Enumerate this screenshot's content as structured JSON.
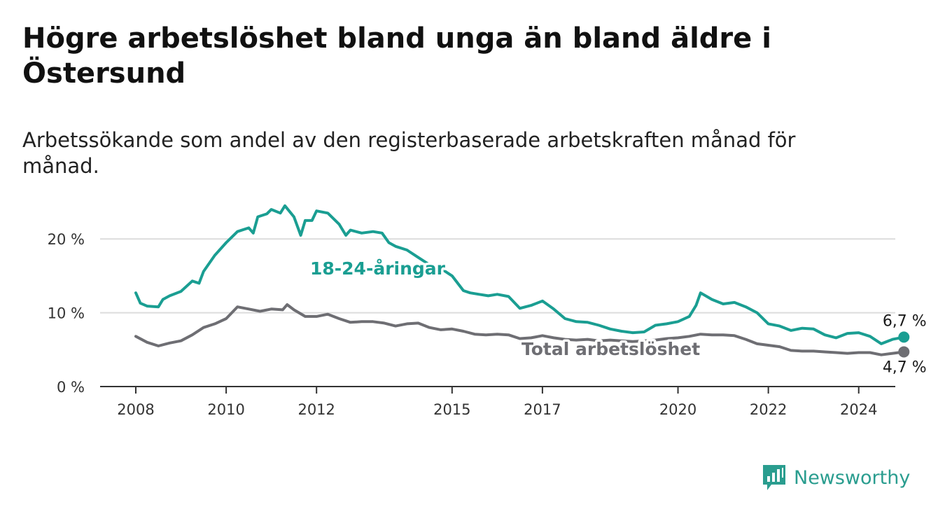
{
  "title": "Högre arbetslöshet bland unga än bland äldre i Östersund",
  "subtitle": "Arbetssökande som andel av den registerbaserade arbetskraften månad för månad.",
  "brand": {
    "name": "Newsworthy",
    "color": "#2a9d8f",
    "icon": "bar-chart-icon"
  },
  "chart_data": {
    "type": "line",
    "ylim": [
      0,
      26
    ],
    "xlim": [
      2008,
      2025.6
    ],
    "y_ticks": [
      {
        "value": 0,
        "label": "0 %"
      },
      {
        "value": 10,
        "label": "10 %"
      },
      {
        "value": 20,
        "label": "20 %"
      }
    ],
    "x_ticks": [
      {
        "value": 2008,
        "label": "2008"
      },
      {
        "value": 2010,
        "label": "2010"
      },
      {
        "value": 2012,
        "label": "2012"
      },
      {
        "value": 2015,
        "label": "2015"
      },
      {
        "value": 2017,
        "label": "2017"
      },
      {
        "value": 2020,
        "label": "2020"
      },
      {
        "value": 2022,
        "label": "2022"
      },
      {
        "value": 2024,
        "label": "2024"
      }
    ],
    "grid": true,
    "series": [
      {
        "name": "18-24-åringar",
        "color": "#1a9e92",
        "end_label": "6,7 %",
        "points": [
          [
            2008.0,
            12.7
          ],
          [
            2008.1,
            11.3
          ],
          [
            2008.25,
            10.9
          ],
          [
            2008.5,
            10.8
          ],
          [
            2008.6,
            11.8
          ],
          [
            2008.75,
            12.3
          ],
          [
            2009.0,
            12.9
          ],
          [
            2009.25,
            14.3
          ],
          [
            2009.4,
            14.0
          ],
          [
            2009.5,
            15.6
          ],
          [
            2009.75,
            17.8
          ],
          [
            2010.0,
            19.5
          ],
          [
            2010.25,
            21.0
          ],
          [
            2010.5,
            21.5
          ],
          [
            2010.6,
            20.8
          ],
          [
            2010.7,
            23.0
          ],
          [
            2010.9,
            23.4
          ],
          [
            2011.0,
            24.0
          ],
          [
            2011.2,
            23.5
          ],
          [
            2011.3,
            24.5
          ],
          [
            2011.5,
            23.0
          ],
          [
            2011.65,
            20.5
          ],
          [
            2011.75,
            22.5
          ],
          [
            2011.9,
            22.5
          ],
          [
            2012.0,
            23.8
          ],
          [
            2012.25,
            23.5
          ],
          [
            2012.5,
            22.0
          ],
          [
            2012.65,
            20.5
          ],
          [
            2012.75,
            21.2
          ],
          [
            2013.0,
            20.8
          ],
          [
            2013.25,
            21.0
          ],
          [
            2013.45,
            20.8
          ],
          [
            2013.6,
            19.5
          ],
          [
            2013.75,
            19.0
          ],
          [
            2014.0,
            18.5
          ],
          [
            2014.25,
            17.5
          ],
          [
            2014.5,
            16.5
          ],
          [
            2014.75,
            16.0
          ],
          [
            2015.0,
            15.0
          ],
          [
            2015.25,
            13.0
          ],
          [
            2015.4,
            12.7
          ],
          [
            2015.6,
            12.5
          ],
          [
            2015.8,
            12.3
          ],
          [
            2016.0,
            12.5
          ],
          [
            2016.25,
            12.2
          ],
          [
            2016.5,
            10.6
          ],
          [
            2016.75,
            11.0
          ],
          [
            2017.0,
            11.6
          ],
          [
            2017.25,
            10.5
          ],
          [
            2017.5,
            9.2
          ],
          [
            2017.75,
            8.8
          ],
          [
            2018.0,
            8.7
          ],
          [
            2018.25,
            8.3
          ],
          [
            2018.5,
            7.8
          ],
          [
            2018.75,
            7.5
          ],
          [
            2019.0,
            7.3
          ],
          [
            2019.25,
            7.4
          ],
          [
            2019.5,
            8.3
          ],
          [
            2019.75,
            8.5
          ],
          [
            2020.0,
            8.8
          ],
          [
            2020.25,
            9.5
          ],
          [
            2020.4,
            11.0
          ],
          [
            2020.5,
            12.7
          ],
          [
            2020.75,
            11.8
          ],
          [
            2021.0,
            11.2
          ],
          [
            2021.25,
            11.4
          ],
          [
            2021.5,
            10.8
          ],
          [
            2021.75,
            10.0
          ],
          [
            2022.0,
            8.5
          ],
          [
            2022.25,
            8.2
          ],
          [
            2022.5,
            7.6
          ],
          [
            2022.75,
            7.9
          ],
          [
            2023.0,
            7.8
          ],
          [
            2023.25,
            7.0
          ],
          [
            2023.5,
            6.6
          ],
          [
            2023.75,
            7.2
          ],
          [
            2024.0,
            7.3
          ],
          [
            2024.25,
            6.8
          ],
          [
            2024.5,
            5.8
          ],
          [
            2024.75,
            6.4
          ],
          [
            2025.0,
            6.7
          ]
        ]
      },
      {
        "name": "Total arbetslöshet",
        "color": "#6e6e73",
        "end_label": "4,7 %",
        "points": [
          [
            2008.0,
            6.8
          ],
          [
            2008.25,
            6.0
          ],
          [
            2008.5,
            5.5
          ],
          [
            2008.75,
            5.9
          ],
          [
            2009.0,
            6.2
          ],
          [
            2009.25,
            7.0
          ],
          [
            2009.5,
            8.0
          ],
          [
            2009.75,
            8.5
          ],
          [
            2010.0,
            9.2
          ],
          [
            2010.25,
            10.8
          ],
          [
            2010.5,
            10.5
          ],
          [
            2010.75,
            10.2
          ],
          [
            2011.0,
            10.5
          ],
          [
            2011.25,
            10.4
          ],
          [
            2011.35,
            11.1
          ],
          [
            2011.5,
            10.4
          ],
          [
            2011.75,
            9.5
          ],
          [
            2012.0,
            9.5
          ],
          [
            2012.25,
            9.8
          ],
          [
            2012.5,
            9.2
          ],
          [
            2012.75,
            8.7
          ],
          [
            2013.0,
            8.8
          ],
          [
            2013.25,
            8.8
          ],
          [
            2013.5,
            8.6
          ],
          [
            2013.75,
            8.2
          ],
          [
            2014.0,
            8.5
          ],
          [
            2014.25,
            8.6
          ],
          [
            2014.5,
            8.0
          ],
          [
            2014.75,
            7.7
          ],
          [
            2015.0,
            7.8
          ],
          [
            2015.25,
            7.5
          ],
          [
            2015.5,
            7.1
          ],
          [
            2015.75,
            7.0
          ],
          [
            2016.0,
            7.1
          ],
          [
            2016.25,
            7.0
          ],
          [
            2016.5,
            6.5
          ],
          [
            2016.75,
            6.6
          ],
          [
            2017.0,
            6.9
          ],
          [
            2017.25,
            6.6
          ],
          [
            2017.5,
            6.4
          ],
          [
            2017.75,
            6.3
          ],
          [
            2018.0,
            6.4
          ],
          [
            2018.25,
            6.2
          ],
          [
            2018.5,
            6.3
          ],
          [
            2018.75,
            6.2
          ],
          [
            2019.0,
            6.1
          ],
          [
            2019.25,
            6.2
          ],
          [
            2019.5,
            6.3
          ],
          [
            2019.75,
            6.5
          ],
          [
            2020.0,
            6.6
          ],
          [
            2020.25,
            6.8
          ],
          [
            2020.5,
            7.1
          ],
          [
            2020.75,
            7.0
          ],
          [
            2021.0,
            7.0
          ],
          [
            2021.25,
            6.9
          ],
          [
            2021.5,
            6.4
          ],
          [
            2021.75,
            5.8
          ],
          [
            2022.0,
            5.6
          ],
          [
            2022.25,
            5.4
          ],
          [
            2022.5,
            4.9
          ],
          [
            2022.75,
            4.8
          ],
          [
            2023.0,
            4.8
          ],
          [
            2023.25,
            4.7
          ],
          [
            2023.5,
            4.6
          ],
          [
            2023.75,
            4.5
          ],
          [
            2024.0,
            4.6
          ],
          [
            2024.25,
            4.6
          ],
          [
            2024.5,
            4.3
          ],
          [
            2024.75,
            4.5
          ],
          [
            2025.0,
            4.7
          ]
        ]
      }
    ]
  }
}
